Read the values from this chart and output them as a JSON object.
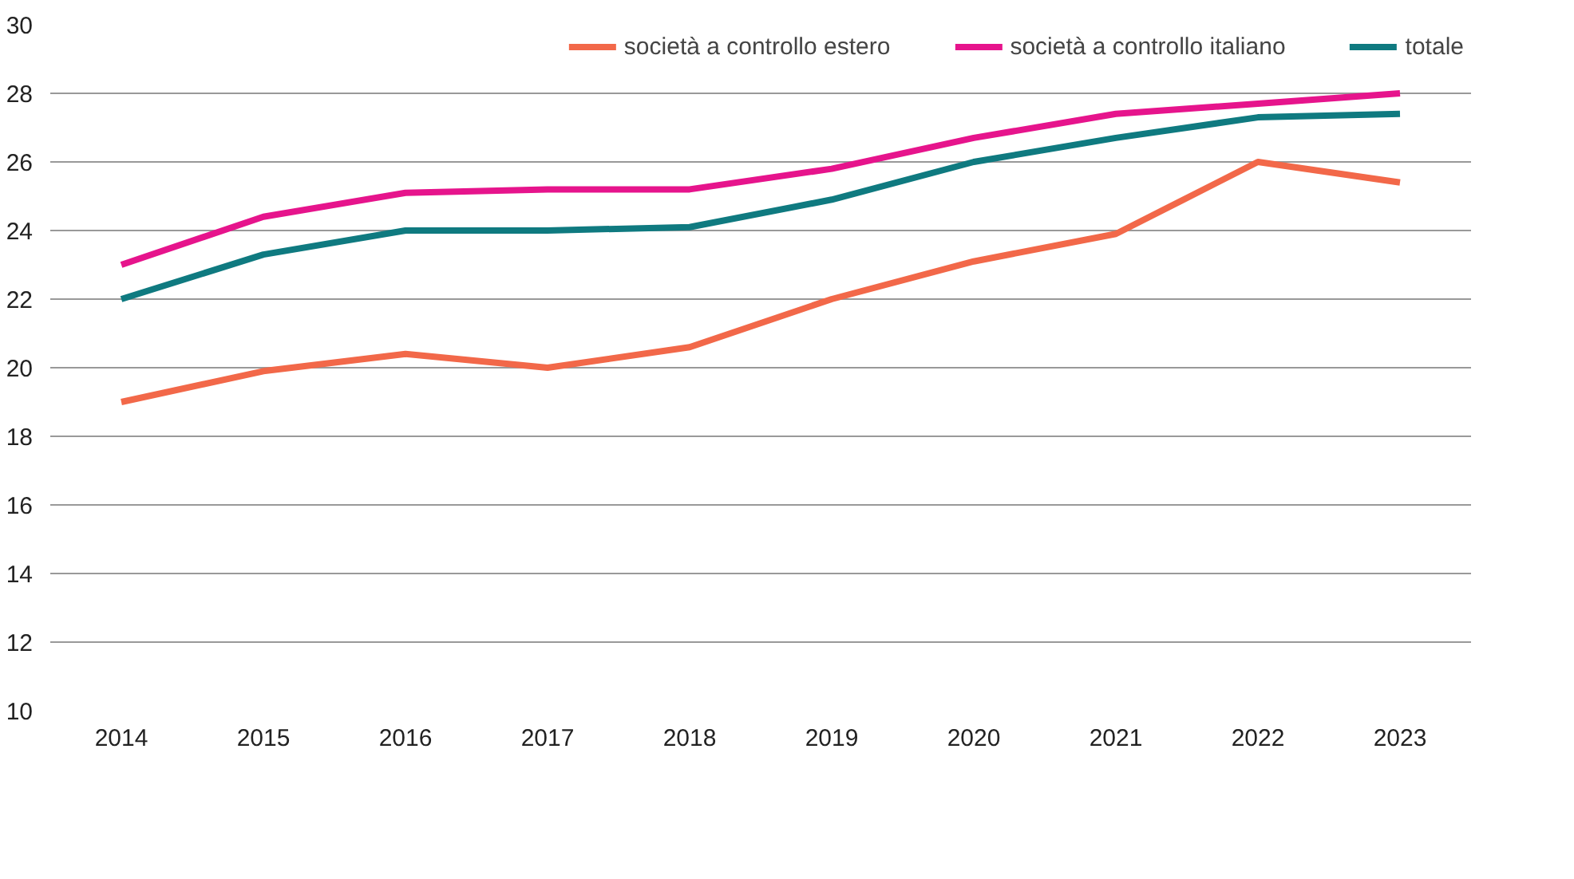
{
  "chart_data": {
    "type": "line",
    "categories": [
      "2014",
      "2015",
      "2016",
      "2017",
      "2018",
      "2019",
      "2020",
      "2021",
      "2022",
      "2023"
    ],
    "series": [
      {
        "name": "società a controllo estero",
        "color": "#f26849",
        "values": [
          19.0,
          19.9,
          20.4,
          20.0,
          20.6,
          22.0,
          23.1,
          23.9,
          26.0,
          25.4
        ]
      },
      {
        "name": "società a controllo italiano",
        "color": "#e6148c",
        "values": [
          23.0,
          24.4,
          25.1,
          25.2,
          25.2,
          25.8,
          26.7,
          27.4,
          27.7,
          28.0
        ]
      },
      {
        "name": "totale",
        "color": "#0f7a80",
        "values": [
          22.0,
          23.3,
          24.0,
          24.0,
          24.1,
          24.9,
          26.0,
          26.7,
          27.3,
          27.4
        ]
      }
    ],
    "ylim": [
      10,
      30
    ],
    "yticks": [
      10,
      12,
      14,
      16,
      18,
      20,
      22,
      24,
      26,
      28,
      30
    ],
    "grid": "y",
    "legend": "top right",
    "marker": "none",
    "line_style": "solid"
  }
}
